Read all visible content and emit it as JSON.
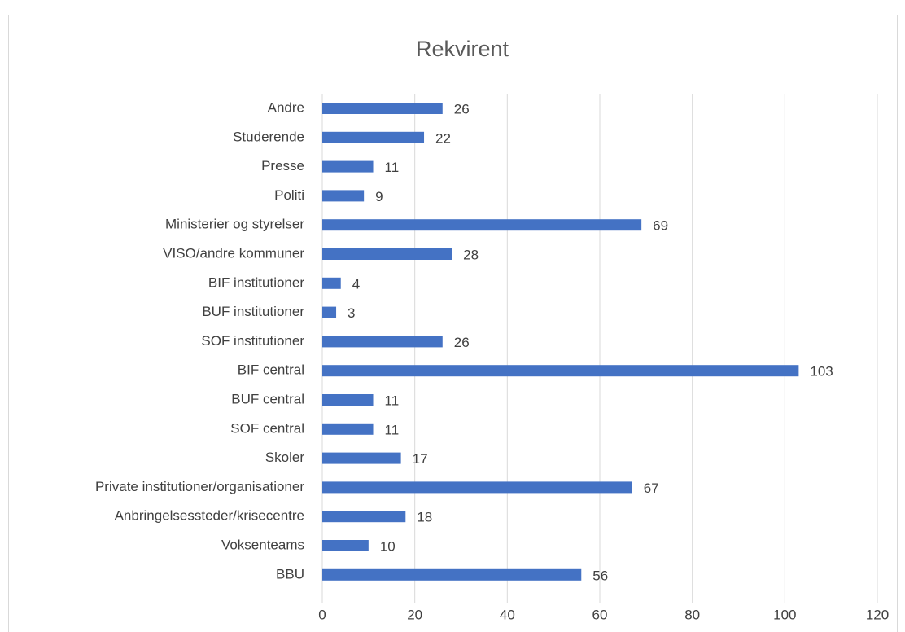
{
  "chart_data": {
    "type": "bar",
    "orientation": "horizontal",
    "title": "Rekvirent",
    "categories": [
      "Andre",
      "Studerende",
      "Presse",
      "Politi",
      "Ministerier og styrelser",
      "VISO/andre kommuner",
      "BIF institutioner",
      "BUF institutioner",
      "SOF institutioner",
      "BIF central",
      "BUF central",
      "SOF central",
      "Skoler",
      "Private institutioner/organisationer",
      "Anbringelsessteder/krisecentre",
      "Voksenteams",
      "BBU"
    ],
    "values": [
      26,
      22,
      11,
      9,
      69,
      28,
      4,
      3,
      26,
      103,
      11,
      11,
      17,
      67,
      18,
      10,
      56
    ],
    "color": "#4472c4",
    "xlim": [
      0,
      120
    ],
    "xticks": [
      0,
      20,
      40,
      60,
      80,
      100,
      120
    ],
    "grid": true
  }
}
